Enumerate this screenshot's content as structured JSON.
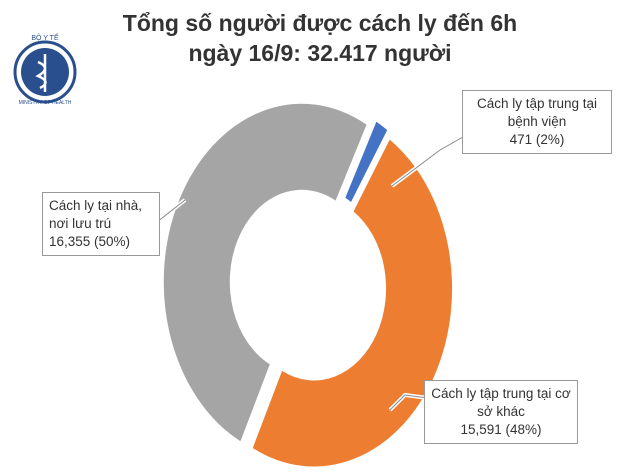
{
  "logo": {
    "top": "BỘ Y TẾ",
    "bottom": "MINISTRY OF HEALTH"
  },
  "chart_data": {
    "type": "donut",
    "title": "Tổng số người được cách ly đến 6h ngày 16/9: 32.417 người",
    "categories": [
      "Cách ly tập trung tại bệnh viện",
      "Cách ly tập trung tại cơ sở khác",
      "Cách ly tại nhà, nơi lưu trú"
    ],
    "values": [
      471,
      15591,
      16355
    ],
    "value_labels": [
      "471 (2%)",
      "15,591 (48%)",
      "16,355 (50%)"
    ],
    "colors": [
      "#4472c4",
      "#ed7d31",
      "#a5a5a5"
    ]
  }
}
